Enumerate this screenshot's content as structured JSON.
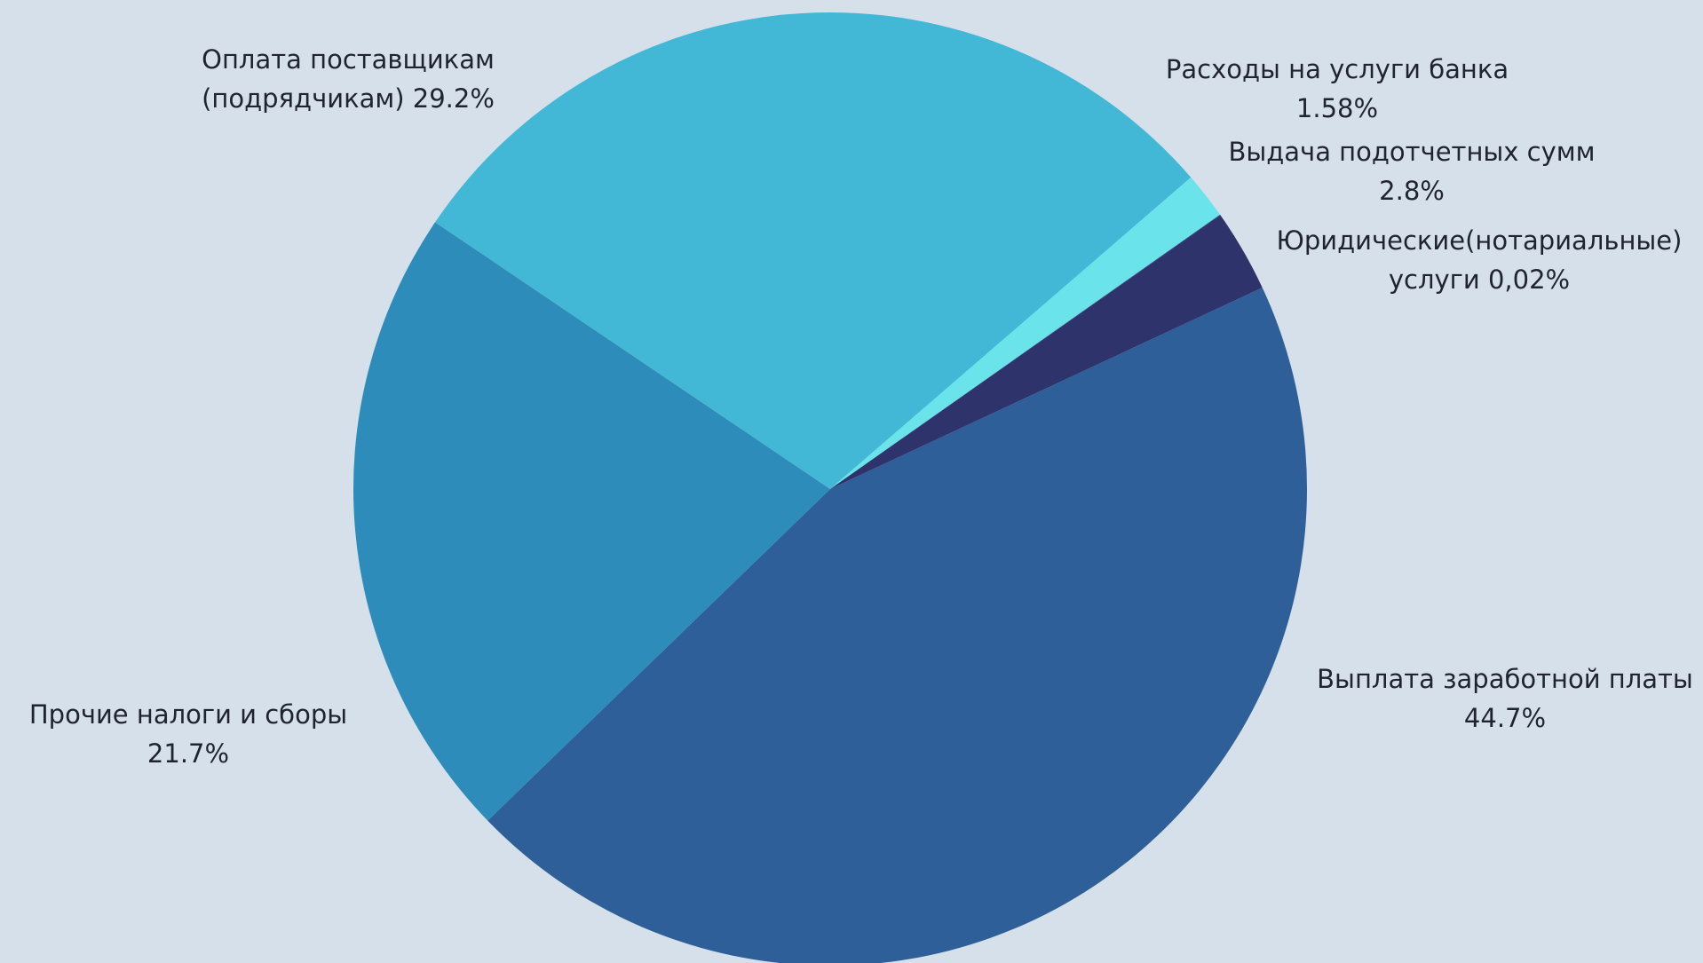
{
  "colors": {
    "background": "#d6e0ea",
    "text": "#1f2430"
  },
  "chart_data": {
    "type": "pie",
    "start_angle_deg": -25,
    "direction": "clockwise",
    "slices": [
      {
        "label_line1": "Выплата заработной платы",
        "label_line2": "44.7%",
        "value": 44.7,
        "color": "#2e5f98"
      },
      {
        "label_line1": "Прочие налоги и сборы",
        "label_line2": "21.7%",
        "value": 21.7,
        "color": "#2e8cba"
      },
      {
        "label_line1": "Оплата поставщикам",
        "label_line2": "(подрядчикам) 29.2%",
        "value": 29.2,
        "color": "#42b7d6"
      },
      {
        "label_line1": "Расходы на услуги банка",
        "label_line2": "1.58%",
        "value": 1.58,
        "color": "#6ae3ea"
      },
      {
        "label_line1": "Юридические(нотариальные)",
        "label_line2": "услуги 0,02%",
        "value": 0.02,
        "color": "#2a3e6e"
      },
      {
        "label_line1": "Выдача подотчетных сумм",
        "label_line2": "2.8%",
        "value": 2.8,
        "color": "#2f336b"
      }
    ]
  }
}
